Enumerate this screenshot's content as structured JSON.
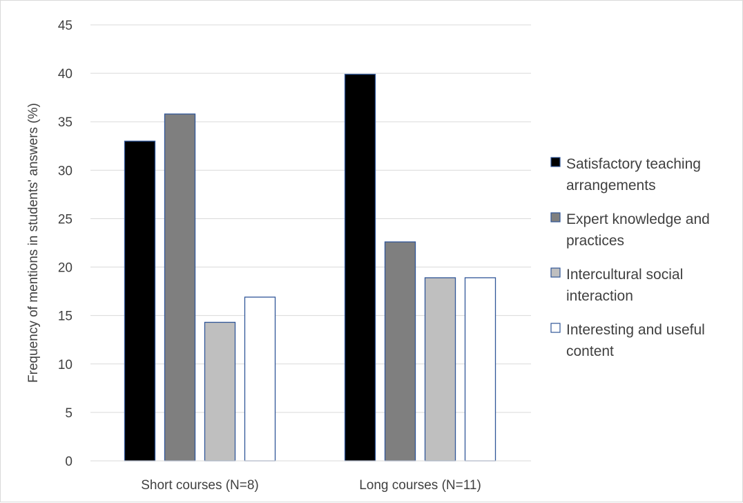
{
  "chart_data": {
    "type": "bar",
    "title": "",
    "xlabel": "",
    "ylabel": "Frequency of mentions in students' answers (%)",
    "ylim": [
      0,
      45
    ],
    "yticks": [
      0,
      5,
      10,
      15,
      20,
      25,
      30,
      35,
      40,
      45
    ],
    "grid": true,
    "legend_position": "right",
    "categories": [
      "Short courses (N=8)",
      "Long courses (N=11)"
    ],
    "series": [
      {
        "name": "Satisfactory teaching arrangements",
        "label_lines": [
          "Satisfactory teaching",
          "arrangements"
        ],
        "values": [
          33,
          39.9
        ],
        "fill": "#000000",
        "stroke": "#2f5597"
      },
      {
        "name": "Expert knowledge and practices",
        "label_lines": [
          "Expert knowledge and",
          "practices"
        ],
        "values": [
          35.8,
          22.6
        ],
        "fill": "#7f7f7f",
        "stroke": "#2f5597"
      },
      {
        "name": "Intercultural social interaction",
        "label_lines": [
          "Intercultural social",
          "interaction"
        ],
        "values": [
          14.3,
          18.9
        ],
        "fill": "#bfbfbf",
        "stroke": "#2f5597"
      },
      {
        "name": "Interesting and useful content",
        "label_lines": [
          "Interesting and useful",
          "content"
        ],
        "values": [
          16.9,
          18.9
        ],
        "fill": "#ffffff",
        "stroke": "#2f5597"
      }
    ]
  }
}
